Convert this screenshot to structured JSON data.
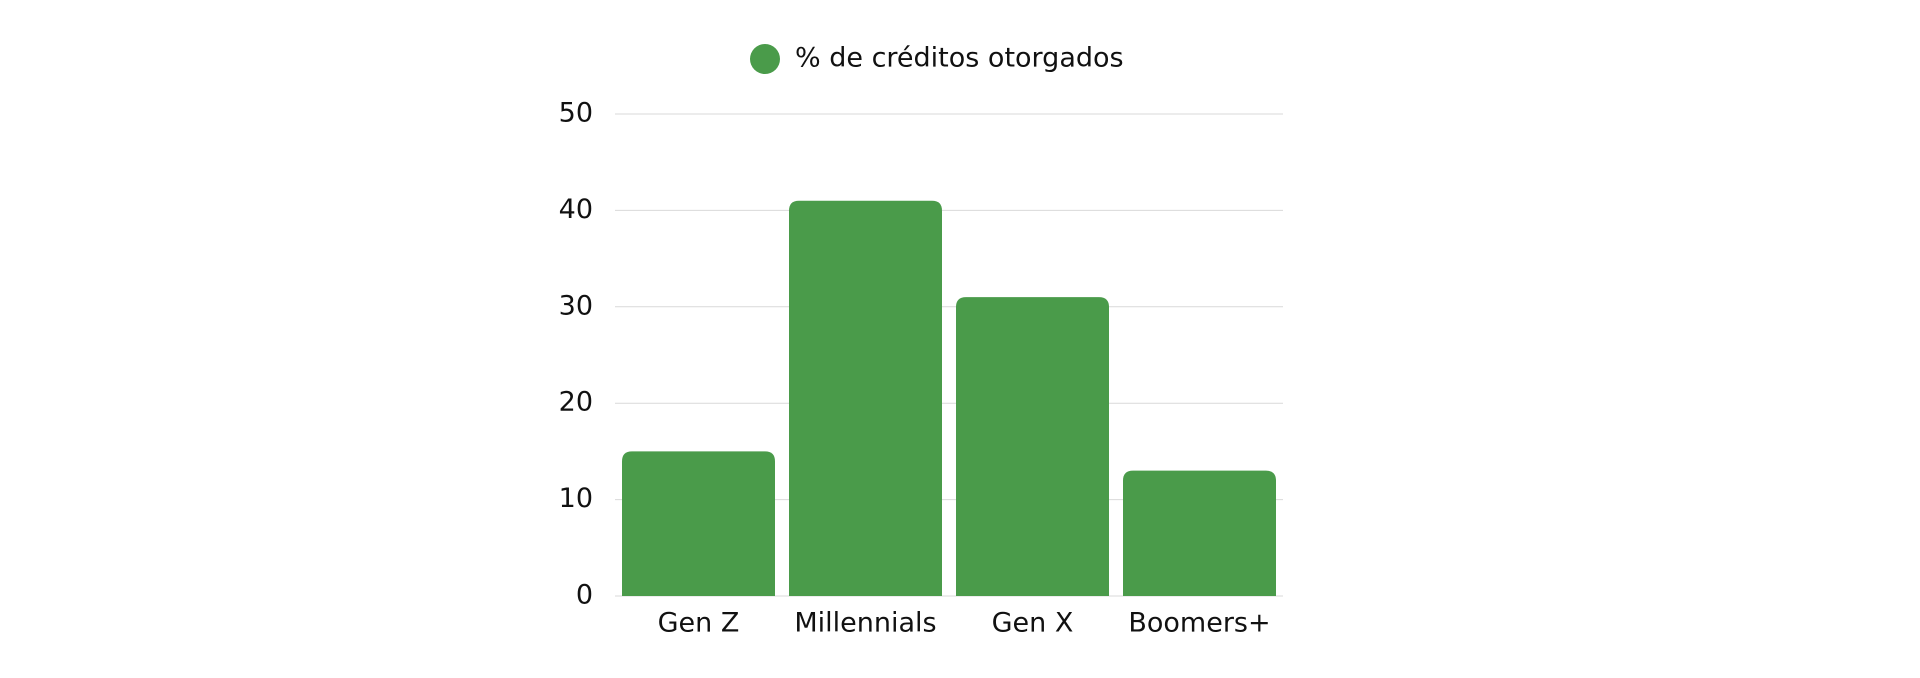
{
  "chart_data": {
    "type": "bar",
    "categories": [
      "Gen Z",
      "Millennials",
      "Gen X",
      "Boomers+"
    ],
    "series": [
      {
        "name": "% de créditos otorgados",
        "color": "#4a9b4a",
        "values": [
          15,
          41,
          31,
          13
        ]
      }
    ],
    "ylim": [
      0,
      50
    ],
    "yticks": [
      0,
      10,
      20,
      30,
      40,
      50
    ],
    "grid": true,
    "legend": "top"
  }
}
